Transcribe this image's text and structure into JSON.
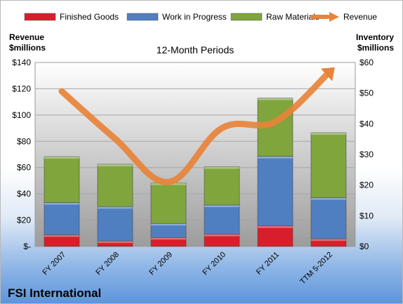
{
  "chart_data": {
    "type": "bar",
    "stacked": true,
    "title": "12-Month Periods",
    "company": "FSI International",
    "ylabel_left": "Revenue\n$millions",
    "ylabel_right": "Inventory\n$millions",
    "categories": [
      "FY 2007",
      "FY 2008",
      "FY 2009",
      "FY 2010",
      "FY 2011",
      "TTM 5-2012"
    ],
    "series": [
      {
        "name": "Finished Goods",
        "axis": "right",
        "color": "#d81e2a",
        "values": [
          3.8,
          1.8,
          2.9,
          4.0,
          6.7,
          2.5
        ]
      },
      {
        "name": "Work in Progress",
        "axis": "right",
        "color": "#4f7fc0",
        "values": [
          10.5,
          11.2,
          4.6,
          9.5,
          22.7,
          13.4
        ]
      },
      {
        "name": "Raw Materials",
        "axis": "right",
        "color": "#7fa53c",
        "values": [
          15.0,
          13.8,
          13.2,
          12.5,
          19.0,
          21.2
        ]
      },
      {
        "name": "Revenue",
        "axis": "left",
        "type": "line",
        "color": "#e8833a",
        "values": [
          118,
          82,
          49,
          90,
          95,
          132
        ]
      }
    ],
    "y_left": {
      "range": [
        0,
        140
      ],
      "ticks": [
        "$-",
        "$20",
        "$40",
        "$60",
        "$80",
        "$100",
        "$120",
        "$140"
      ]
    },
    "y_right": {
      "range": [
        0,
        60
      ],
      "ticks": [
        "$0",
        "$10",
        "$20",
        "$30",
        "$40",
        "$50",
        "$60"
      ]
    },
    "grid": true,
    "legend_position": "top"
  }
}
